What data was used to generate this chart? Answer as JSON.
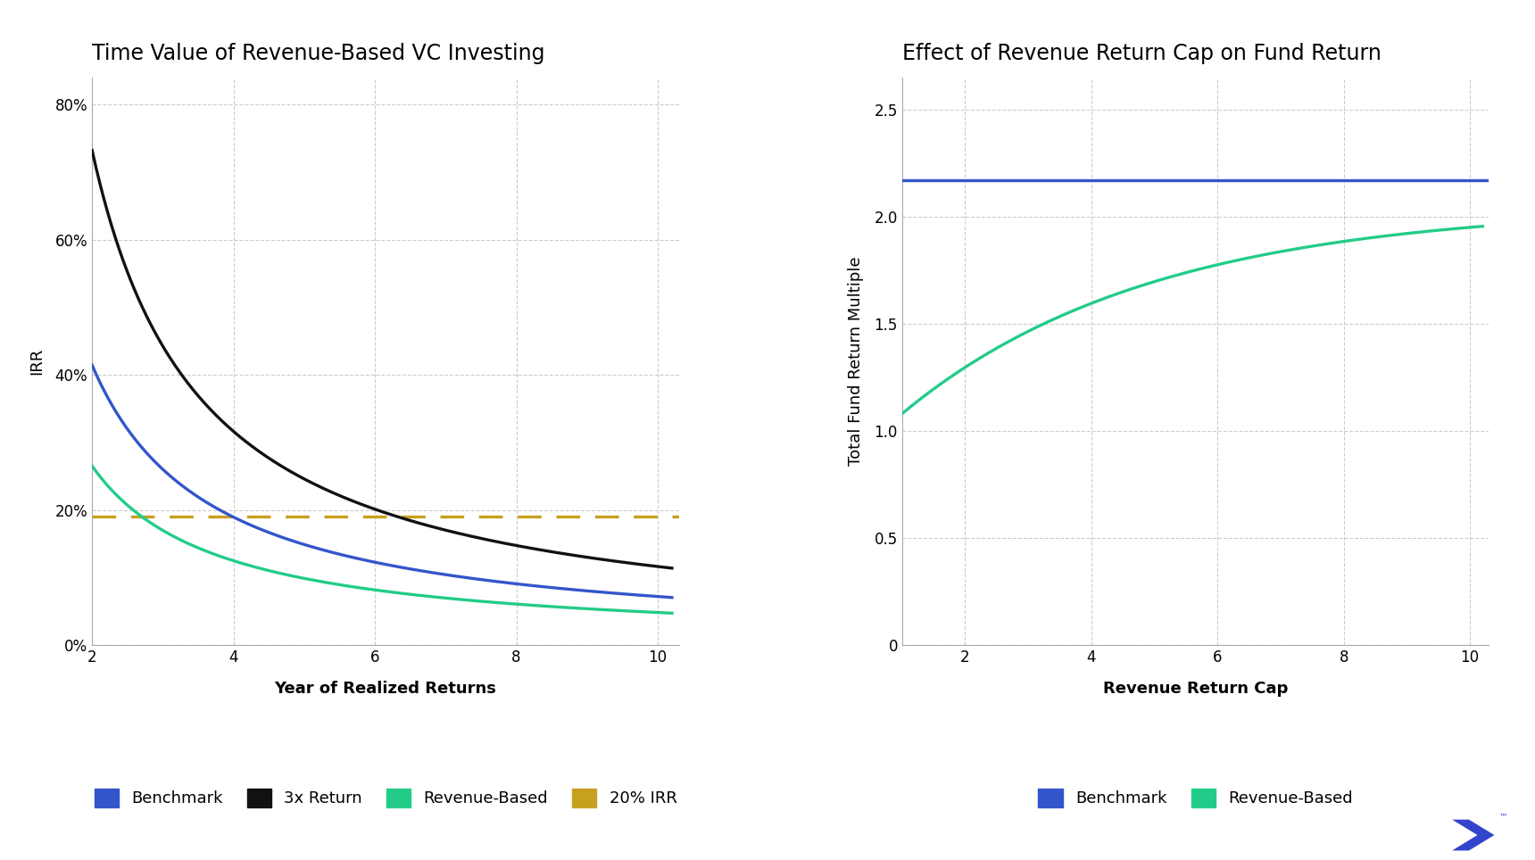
{
  "chart1_title": "Time Value of Revenue-Based VC Investing",
  "chart2_title": "Effect of Revenue Return Cap on Fund Return",
  "chart1_xlabel": "Year of Realized Returns",
  "chart1_ylabel": "IRR",
  "chart2_xlabel": "Revenue Return Cap",
  "chart2_ylabel": "Total Fund Return Multiple",
  "chart1_xticks": [
    2,
    4,
    6,
    8,
    10
  ],
  "chart1_yticks": [
    0,
    0.2,
    0.4,
    0.6,
    0.8
  ],
  "chart1_ytick_labels": [
    "0%",
    "20%",
    "40%",
    "60%",
    "80%"
  ],
  "chart1_xlim": [
    2,
    10.3
  ],
  "chart1_ylim": [
    0,
    0.84
  ],
  "chart2_xticks": [
    2,
    4,
    6,
    8,
    10
  ],
  "chart2_yticks": [
    0,
    0.5,
    1.0,
    1.5,
    2.0,
    2.5
  ],
  "chart2_ytick_labels": [
    "0",
    "0.5",
    "1.0",
    "1.5",
    "2.0",
    "2.5"
  ],
  "chart2_xlim": [
    1,
    10.3
  ],
  "chart2_ylim": [
    0,
    2.65
  ],
  "irr_line_19": 0.19,
  "benchmark_color": "#3355cc",
  "return3x_color": "#111111",
  "revenue_based_color": "#22cc88",
  "irr20_color": "#c8a020",
  "benchmark2_color": "#3355cc",
  "revenue_based2_color": "#22cc88",
  "background_color": "#ffffff",
  "grid_color": "#cccccc",
  "title_fontsize": 17,
  "axis_label_fontsize": 13,
  "tick_fontsize": 12,
  "legend_fontsize": 13,
  "line_width": 2.4,
  "benchmark_flat_value": 2.17,
  "spine_color": "#aaaaaa",
  "logo_color": "#3344cc"
}
